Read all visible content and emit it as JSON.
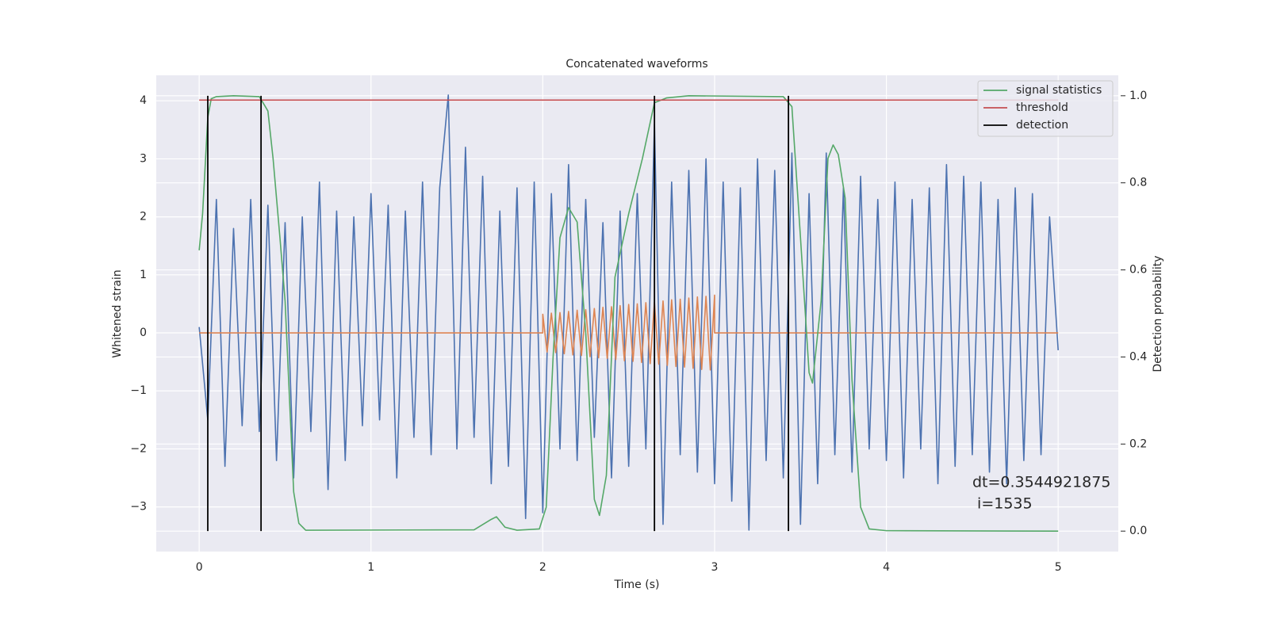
{
  "chart_data": {
    "type": "line",
    "title": "Concatenated waveforms",
    "xlabel": "Time (s)",
    "ylabel": "Whitened strain",
    "y2label": "Detection probability",
    "annotation": [
      "dt=0.3544921875",
      " i=1535"
    ],
    "xlim": [
      -0.25,
      5.35
    ],
    "ylim": [
      -3.77,
      4.44
    ],
    "y2lim": [
      -0.047,
      1.047
    ],
    "xticks": [
      0,
      1,
      2,
      3,
      4,
      5
    ],
    "yticks": [
      {
        "value": -3,
        "label": "−3"
      },
      {
        "value": -2,
        "label": "−2"
      },
      {
        "value": -1,
        "label": "−1"
      },
      0,
      1,
      2,
      3,
      4
    ],
    "y2ticks": [
      {
        "value": 0,
        "label": "0.0"
      },
      {
        "value": 0.2,
        "label": "0.2"
      },
      {
        "value": 0.4,
        "label": "0.4"
      },
      {
        "value": 0.6,
        "label": "0.6"
      },
      {
        "value": 0.8,
        "label": "0.8"
      },
      {
        "value": 1,
        "label": "1.0"
      }
    ],
    "grid": true,
    "legend": "upper right",
    "x": [
      0,
      0.05,
      0.1,
      0.15,
      0.2,
      0.25,
      0.3,
      0.35,
      0.4,
      0.45,
      0.5,
      0.55,
      0.6,
      0.65,
      0.7,
      0.75,
      0.8,
      0.85,
      0.9,
      0.95,
      1,
      1.05,
      1.1,
      1.15,
      1.2,
      1.25,
      1.3,
      1.35,
      1.4,
      1.45,
      1.5,
      1.55,
      1.6,
      1.65,
      1.7,
      1.75,
      1.8,
      1.85,
      1.9,
      1.95,
      2,
      2.05,
      2.1,
      2.15,
      2.2,
      2.25,
      2.3,
      2.35,
      2.4,
      2.45,
      2.5,
      2.55,
      2.6,
      2.65,
      2.7,
      2.75,
      2.8,
      2.85,
      2.9,
      2.95,
      3,
      3.05,
      3.1,
      3.15,
      3.2,
      3.25,
      3.3,
      3.35,
      3.4,
      3.45,
      3.5,
      3.55,
      3.6,
      3.65,
      3.7,
      3.75,
      3.8,
      3.85,
      3.9,
      3.95,
      4,
      4.05,
      4.1,
      4.15,
      4.2,
      4.25,
      4.3,
      4.35,
      4.4,
      4.45,
      4.5,
      4.55,
      4.6,
      4.65,
      4.7,
      4.75,
      4.8,
      4.85,
      4.9,
      4.95,
      5
    ],
    "series": [
      {
        "color": "#4c72b0",
        "values": [
          0.1,
          -1.5,
          2.3,
          -2.3,
          1.8,
          -1.6,
          2.3,
          -1.7,
          2.2,
          -2.2,
          1.9,
          -2.5,
          2.0,
          -1.7,
          2.6,
          -2.7,
          2.1,
          -2.2,
          2.0,
          -1.6,
          2.4,
          -1.5,
          2.2,
          -2.5,
          2.1,
          -1.8,
          2.6,
          -2.1,
          2.5,
          4.1,
          -2.0,
          3.2,
          -1.8,
          2.7,
          -2.6,
          2.1,
          -2.3,
          2.5,
          -3.2,
          2.6,
          -3.1,
          2.4,
          -2.0,
          2.9,
          -2.2,
          2.3,
          -1.8,
          1.9,
          -2.5,
          2.1,
          -2.3,
          2.4,
          -2.0,
          3.6,
          -3.3,
          2.6,
          -2.1,
          2.8,
          -2.4,
          3.0,
          -2.6,
          2.6,
          -2.9,
          2.5,
          -3.4,
          3.0,
          -2.2,
          2.8,
          -2.5,
          3.1,
          -3.3,
          2.4,
          -2.6,
          3.1,
          -2.1,
          2.5,
          -2.4,
          2.7,
          -2.0,
          2.3,
          -2.2,
          2.6,
          -2.5,
          2.3,
          -2.0,
          2.5,
          -2.6,
          2.9,
          -2.3,
          2.7,
          -2.1,
          2.6,
          -2.4,
          2.3,
          -2.6,
          2.5,
          -2.2,
          2.4,
          -2.1,
          2.0,
          -0.3
        ]
      },
      {
        "color": "#dd8452",
        "x": [
          0,
          2,
          2,
          2.025,
          2.05,
          2.075,
          2.1,
          2.125,
          2.15,
          2.175,
          2.2,
          2.225,
          2.25,
          2.275,
          2.3,
          2.325,
          2.35,
          2.375,
          2.4,
          2.425,
          2.45,
          2.475,
          2.5,
          2.525,
          2.55,
          2.575,
          2.6,
          2.625,
          2.65,
          2.675,
          2.7,
          2.725,
          2.75,
          2.775,
          2.8,
          2.825,
          2.85,
          2.875,
          2.9,
          2.925,
          2.95,
          2.975,
          3,
          3,
          5
        ],
        "values": [
          0,
          0,
          0.32,
          -0.33,
          0.34,
          -0.34,
          0.35,
          -0.36,
          0.37,
          -0.38,
          0.39,
          -0.39,
          0.4,
          -0.41,
          0.42,
          -0.43,
          0.44,
          -0.44,
          0.45,
          -0.46,
          0.47,
          -0.48,
          0.49,
          -0.49,
          0.5,
          -0.51,
          0.52,
          -0.53,
          0.53,
          -0.54,
          0.55,
          -0.56,
          0.57,
          -0.58,
          0.58,
          -0.59,
          0.6,
          -0.61,
          0.62,
          -0.63,
          0.63,
          -0.64,
          0.65,
          0,
          0
        ]
      },
      {
        "name": "signal statistics",
        "color": "#55a868",
        "axis": "y2",
        "x": [
          0,
          0.02,
          0.05,
          0.07,
          0.1,
          0.2,
          0.35,
          0.37,
          0.4,
          0.43,
          0.47,
          0.5,
          0.55,
          0.58,
          0.62,
          1.6,
          1.7,
          1.73,
          1.78,
          1.85,
          1.98,
          2.02,
          2.06,
          2.1,
          2.15,
          2.2,
          2.25,
          2.3,
          2.33,
          2.37,
          2.42,
          2.5,
          2.58,
          2.65,
          2.72,
          2.85,
          3.4,
          3.45,
          3.5,
          3.55,
          3.57,
          3.62,
          3.66,
          3.69,
          3.72,
          3.76,
          3.8,
          3.85,
          3.9,
          4.0,
          5.0
        ],
        "values": [
          0.645,
          0.73,
          0.95,
          0.993,
          0.998,
          1.0,
          0.998,
          0.985,
          0.965,
          0.856,
          0.674,
          0.528,
          0.09,
          0.018,
          0.002,
          0.003,
          0.027,
          0.033,
          0.009,
          0.002,
          0.005,
          0.055,
          0.4,
          0.674,
          0.743,
          0.71,
          0.455,
          0.073,
          0.036,
          0.128,
          0.583,
          0.729,
          0.856,
          0.984,
          0.995,
          1.0,
          0.998,
          0.975,
          0.674,
          0.364,
          0.34,
          0.528,
          0.856,
          0.887,
          0.865,
          0.765,
          0.346,
          0.055,
          0.005,
          0.001,
          0.0
        ]
      },
      {
        "name": "threshold",
        "color": "#c44e52",
        "axis": "y2",
        "x": [
          0,
          5
        ],
        "values": [
          0.99,
          0.99
        ]
      },
      {
        "name": "detection",
        "color": "#000000",
        "axis": "y2",
        "type": "vlines",
        "x": [
          0.05,
          0.36,
          2.65,
          3.43
        ],
        "values": [
          1,
          1,
          1,
          1
        ]
      }
    ]
  }
}
